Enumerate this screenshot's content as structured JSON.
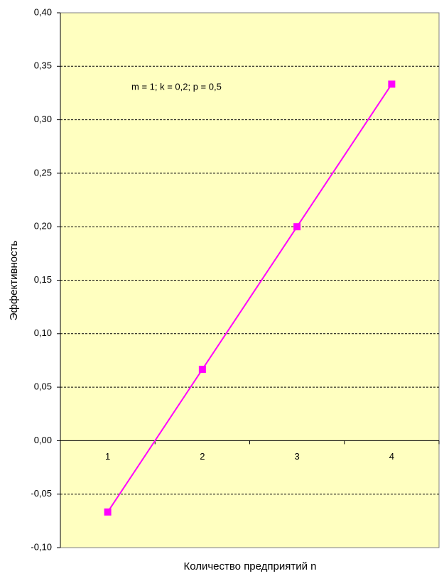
{
  "chart_data": {
    "type": "line",
    "xlabel": "Количество предприятий n",
    "ylabel": "Эффективность",
    "annotation": "m = 1; k = 0,2; p = 0,5",
    "categories": [
      "1",
      "2",
      "3",
      "4"
    ],
    "series": [
      {
        "name": "Эффективность",
        "color": "#ff00ff",
        "values": [
          -0.0667,
          0.0667,
          0.2,
          0.3333
        ]
      }
    ],
    "ylim": [
      -0.1,
      0.4
    ],
    "yticks": [
      {
        "value": -0.1,
        "label": "-0,10"
      },
      {
        "value": -0.05,
        "label": "-0,05"
      },
      {
        "value": 0,
        "label": "0,00"
      },
      {
        "value": 0.05,
        "label": "0,05"
      },
      {
        "value": 0.1,
        "label": "0,10"
      },
      {
        "value": 0.15,
        "label": "0,15"
      },
      {
        "value": 0.2,
        "label": "0,20"
      },
      {
        "value": 0.25,
        "label": "0,25"
      },
      {
        "value": 0.3,
        "label": "0,30"
      },
      {
        "value": 0.35,
        "label": "0,35"
      },
      {
        "value": 0.4,
        "label": "0,40"
      }
    ],
    "grid": true,
    "background": "#ffffc0"
  }
}
